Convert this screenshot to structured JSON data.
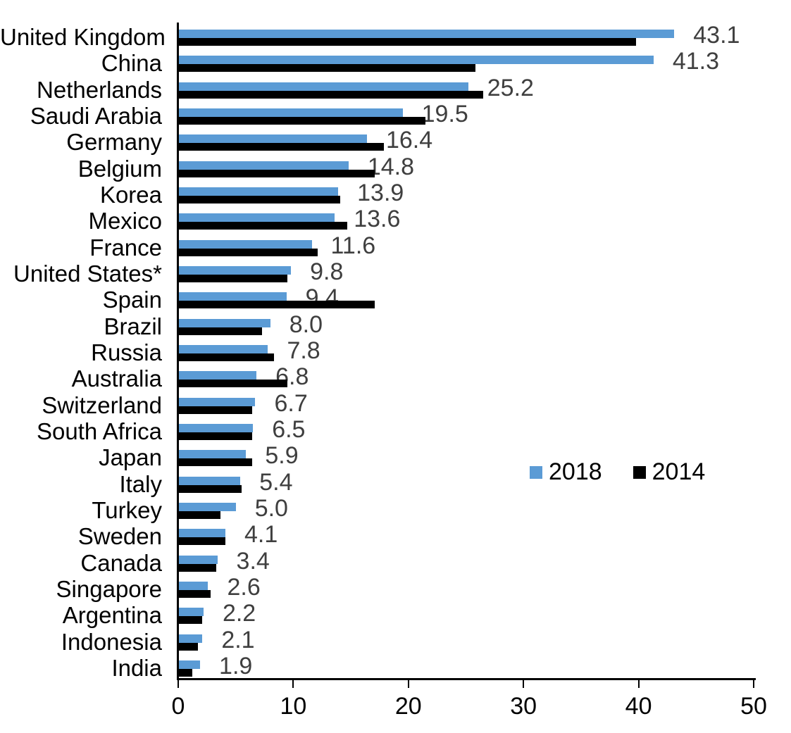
{
  "chart_data": {
    "type": "bar",
    "orientation": "horizontal",
    "title": "",
    "xlabel": "",
    "ylabel": "",
    "xlim": [
      0,
      50
    ],
    "xticks": [
      "0",
      "10",
      "20",
      "30",
      "40",
      "50"
    ],
    "xtick_values": [
      0,
      10,
      20,
      30,
      40,
      50
    ],
    "grid": false,
    "categories": [
      "United Kingdom",
      "China",
      "Netherlands",
      "Saudi Arabia",
      "Germany",
      "Belgium",
      "Korea",
      "Mexico",
      "France",
      "United States*",
      "Spain",
      "Brazil",
      "Russia",
      "Australia",
      "Switzerland",
      "South Africa",
      "Japan",
      "Italy",
      "Turkey",
      "Sweden",
      "Canada",
      "Singapore",
      "Argentina",
      "Indonesia",
      "India"
    ],
    "series": [
      {
        "name": "2018",
        "color": "#5B9BD5",
        "values": [
          43.1,
          41.3,
          25.2,
          19.5,
          16.4,
          14.8,
          13.9,
          13.6,
          11.6,
          9.8,
          9.4,
          8.0,
          7.8,
          6.8,
          6.7,
          6.5,
          5.9,
          5.4,
          5.0,
          4.1,
          3.4,
          2.6,
          2.2,
          2.1,
          1.9
        ]
      },
      {
        "name": "2014",
        "color": "#000000",
        "values": [
          39.8,
          25.8,
          26.5,
          21.5,
          17.9,
          17.1,
          14.1,
          14.7,
          12.1,
          9.5,
          17.1,
          7.3,
          8.3,
          9.5,
          6.4,
          6.4,
          6.4,
          5.5,
          3.7,
          4.1,
          3.3,
          2.8,
          2.1,
          1.7,
          1.2
        ]
      }
    ],
    "data_labels": [
      "43.1",
      "41.3",
      "25.2",
      "19.5",
      "16.4",
      "14.8",
      "13.9",
      "13.6",
      "11.6",
      "9.8",
      "9.4",
      "8.0",
      "7.8",
      "6.8",
      "6.7",
      "6.5",
      "5.9",
      "5.4",
      "5.0",
      "4.1",
      "3.4",
      "2.6",
      "2.2",
      "2.1",
      "1.9"
    ],
    "data_label_color": "#3F3F3F",
    "legend": {
      "position": "middle-right",
      "entries": [
        {
          "label": "2018",
          "color": "#5B9BD5"
        },
        {
          "label": "2014",
          "color": "#000000"
        }
      ]
    }
  }
}
